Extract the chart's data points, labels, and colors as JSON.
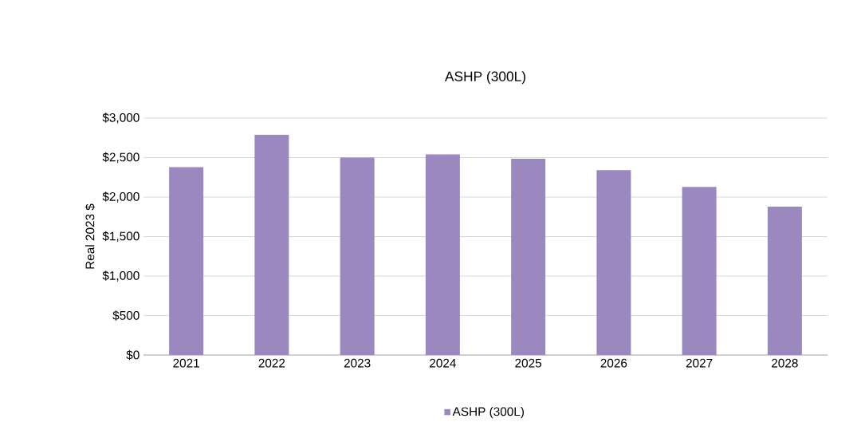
{
  "chart_data": {
    "type": "bar",
    "title": "ASHP (300L)",
    "ylabel": "Real 2023 $",
    "categories": [
      "2021",
      "2022",
      "2023",
      "2024",
      "2025",
      "2026",
      "2027",
      "2028"
    ],
    "series": [
      {
        "name": "ASHP (300L)",
        "color": "#9b88bf",
        "values": [
          2380,
          2790,
          2500,
          2540,
          2485,
          2340,
          2130,
          1880
        ]
      }
    ],
    "ylim": [
      0,
      3000
    ],
    "yticks": [
      {
        "value": 0,
        "label": "$0"
      },
      {
        "value": 500,
        "label": "$500"
      },
      {
        "value": 1000,
        "label": "$1,000"
      },
      {
        "value": 1500,
        "label": "$1,500"
      },
      {
        "value": 2000,
        "label": "$2,000"
      },
      {
        "value": 2500,
        "label": "$2,500"
      },
      {
        "value": 3000,
        "label": "$3,000"
      }
    ],
    "grid": "y",
    "legend": "bottom"
  }
}
